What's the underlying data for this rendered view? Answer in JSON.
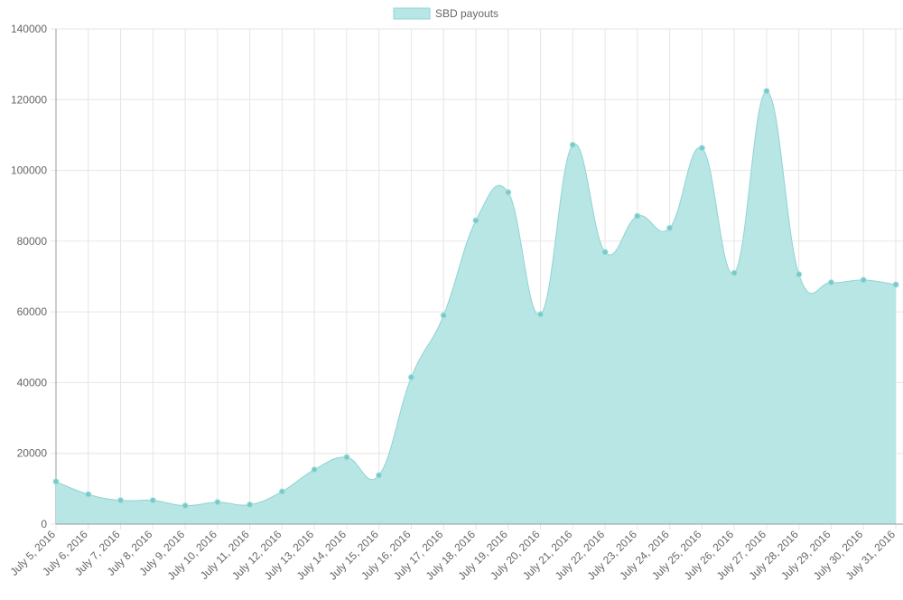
{
  "chart_data": {
    "type": "area",
    "categories": [
      "July 5, 2016",
      "July 6, 2016",
      "July 7, 2016",
      "July 8, 2016",
      "July 9, 2016",
      "July 10, 2016",
      "July 11, 2016",
      "July 12, 2016",
      "July 13, 2016",
      "July 14, 2016",
      "July 15, 2016",
      "July 16, 2016",
      "July 17, 2016",
      "July 18, 2016",
      "July 19, 2016",
      "July 20, 2016",
      "July 21, 2016",
      "July 22, 2016",
      "July 23, 2016",
      "July 24, 2016",
      "July 25, 2016",
      "July 26, 2016",
      "July 27, 2016",
      "July 28, 2016",
      "July 29, 2016",
      "July 30, 2016",
      "July 31, 2016"
    ],
    "series": [
      {
        "name": "SBD payouts",
        "values": [
          12000,
          8400,
          6700,
          6700,
          5200,
          6200,
          5500,
          9200,
          15400,
          18900,
          13800,
          41500,
          59000,
          85800,
          93800,
          59300,
          107200,
          76900,
          87100,
          83700,
          106300,
          71000,
          122400,
          70600,
          68300,
          69000,
          67700
        ]
      }
    ],
    "ylim": [
      0,
      140000
    ],
    "yticks": [
      "0",
      "20000",
      "40000",
      "60000",
      "80000",
      "100000",
      "120000",
      "140000"
    ],
    "grid": true,
    "legend_position": "top-center",
    "colors": {
      "fill": "#b7e6e5",
      "line": "#8fd4d2",
      "point": "#75cbc9",
      "grid": "#e6e6e6",
      "axis": "#999999",
      "text": "#666666"
    }
  }
}
